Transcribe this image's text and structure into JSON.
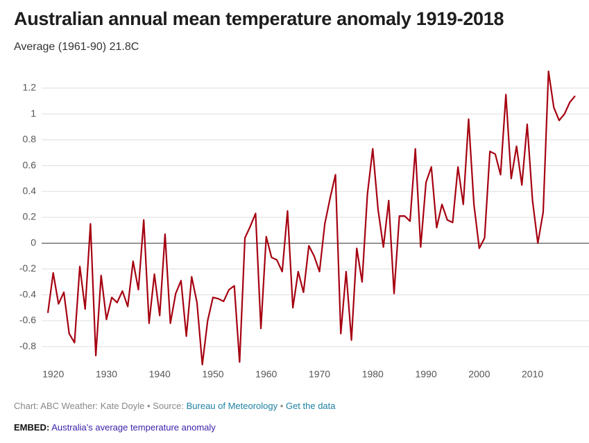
{
  "chart_data": {
    "type": "line",
    "title": "Australian annual mean temperature anomaly 1919-2018",
    "subtitle": "Average (1961-90) 21.8C",
    "x": [
      1919,
      1920,
      1921,
      1922,
      1923,
      1924,
      1925,
      1926,
      1927,
      1928,
      1929,
      1930,
      1931,
      1932,
      1933,
      1934,
      1935,
      1936,
      1937,
      1938,
      1939,
      1940,
      1941,
      1942,
      1943,
      1944,
      1945,
      1946,
      1947,
      1948,
      1949,
      1950,
      1951,
      1952,
      1953,
      1954,
      1955,
      1956,
      1957,
      1958,
      1959,
      1960,
      1961,
      1962,
      1963,
      1964,
      1965,
      1966,
      1967,
      1968,
      1969,
      1970,
      1971,
      1972,
      1973,
      1974,
      1975,
      1976,
      1977,
      1978,
      1979,
      1980,
      1981,
      1982,
      1983,
      1984,
      1985,
      1986,
      1987,
      1988,
      1989,
      1990,
      1991,
      1992,
      1993,
      1994,
      1995,
      1996,
      1997,
      1998,
      1999,
      2000,
      2001,
      2002,
      2003,
      2004,
      2005,
      2006,
      2007,
      2008,
      2009,
      2010,
      2011,
      2012,
      2013,
      2014,
      2015,
      2016,
      2017,
      2018
    ],
    "values": [
      -0.54,
      -0.23,
      -0.47,
      -0.38,
      -0.7,
      -0.77,
      -0.18,
      -0.51,
      0.15,
      -0.87,
      -0.25,
      -0.59,
      -0.42,
      -0.46,
      -0.37,
      -0.49,
      -0.14,
      -0.36,
      0.18,
      -0.62,
      -0.24,
      -0.56,
      0.07,
      -0.62,
      -0.39,
      -0.29,
      -0.72,
      -0.26,
      -0.46,
      -0.94,
      -0.6,
      -0.42,
      -0.43,
      -0.45,
      -0.36,
      -0.33,
      -0.92,
      0.04,
      0.13,
      0.23,
      -0.66,
      0.05,
      -0.11,
      -0.13,
      -0.22,
      0.25,
      -0.5,
      -0.22,
      -0.38,
      -0.02,
      -0.1,
      -0.22,
      0.15,
      0.35,
      0.53,
      -0.7,
      -0.22,
      -0.75,
      -0.04,
      -0.3,
      0.38,
      0.73,
      0.26,
      -0.03,
      0.33,
      -0.39,
      0.21,
      0.21,
      0.17,
      0.73,
      -0.03,
      0.47,
      0.59,
      0.12,
      0.3,
      0.18,
      0.16,
      0.59,
      0.3,
      0.96,
      0.3,
      -0.04,
      0.04,
      0.71,
      0.69,
      0.53,
      1.15,
      0.5,
      0.75,
      0.45,
      0.92,
      0.33,
      0.0,
      0.24,
      1.33,
      1.05,
      0.95,
      1.0,
      1.09,
      1.14
    ],
    "color": "#a50010",
    "xlim": [
      1919,
      2018
    ],
    "xticks": [
      1920,
      1930,
      1940,
      1950,
      1960,
      1970,
      1980,
      1990,
      2000,
      2010
    ],
    "ylim": [
      -0.95,
      1.35
    ],
    "yticks": [
      -0.8,
      -0.6,
      -0.4,
      -0.2,
      0,
      0.2,
      0.4,
      0.6,
      0.8,
      1,
      1.2
    ],
    "grid": true
  },
  "footer": {
    "credit": "Chart: ABC Weather: Kate Doyle",
    "separator": "•",
    "source_label": "Source:",
    "source": "Bureau of Meteorology",
    "data_link": "Get the data",
    "embed_label": "EMBED:",
    "embed_text": "Australia's average temperature anomaly"
  }
}
